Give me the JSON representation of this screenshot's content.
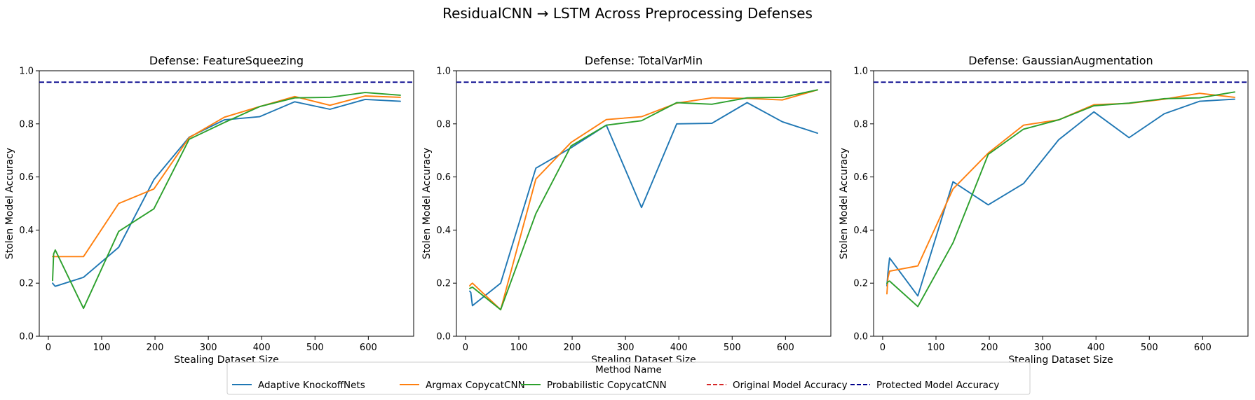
{
  "suptitle": "ResidualCNN → LSTM Across Preprocessing Defenses",
  "x": [
    8,
    10,
    13,
    66,
    132,
    198,
    264,
    330,
    396,
    462,
    528,
    594,
    660
  ],
  "chart_data": [
    {
      "type": "line",
      "title": "Defense: FeatureSqueezing",
      "xlabel": "Stealing Dataset Size",
      "ylabel": "Stolen Model Accuracy",
      "xlim": [
        -17,
        685
      ],
      "ylim": [
        0.0,
        1.0
      ],
      "xticks": [
        0,
        100,
        200,
        300,
        400,
        500,
        600
      ],
      "yticks": [
        0.0,
        0.2,
        0.4,
        0.6,
        0.8,
        1.0
      ],
      "reference_line": 0.957,
      "series": [
        {
          "name": "Adaptive KnockoffNets",
          "color": "#1f77b4",
          "values": [
            0.2,
            0.195,
            0.188,
            0.222,
            0.335,
            0.59,
            0.75,
            0.815,
            0.827,
            0.883,
            0.855,
            0.892,
            0.885
          ]
        },
        {
          "name": "Argmax CopycatCNN",
          "color": "#ff7f0e",
          "values": [
            0.3,
            0.3,
            0.3,
            0.3,
            0.5,
            0.555,
            0.748,
            0.825,
            0.865,
            0.903,
            0.87,
            0.905,
            0.9
          ]
        },
        {
          "name": "Probabilistic CopycatCNN",
          "color": "#2ca02c",
          "values": [
            0.21,
            0.31,
            0.325,
            0.105,
            0.395,
            0.48,
            0.742,
            0.805,
            0.865,
            0.898,
            0.9,
            0.918,
            0.908
          ]
        }
      ]
    },
    {
      "type": "line",
      "title": "Defense: TotalVarMin",
      "xlabel": "Stealing Dataset Size",
      "ylabel": "Stolen Model Accuracy",
      "xlim": [
        -17,
        685
      ],
      "ylim": [
        0.0,
        1.0
      ],
      "xticks": [
        0,
        100,
        200,
        300,
        400,
        500,
        600
      ],
      "yticks": [
        0.0,
        0.2,
        0.4,
        0.6,
        0.8,
        1.0
      ],
      "reference_line": 0.957,
      "series": [
        {
          "name": "Adaptive KnockoffNets",
          "color": "#1f77b4",
          "values": [
            0.17,
            0.165,
            0.115,
            0.2,
            0.633,
            0.71,
            0.795,
            0.485,
            0.8,
            0.802,
            0.88,
            0.808,
            0.765
          ]
        },
        {
          "name": "Argmax CopycatCNN",
          "color": "#ff7f0e",
          "values": [
            0.19,
            0.195,
            0.2,
            0.1,
            0.592,
            0.73,
            0.816,
            0.827,
            0.878,
            0.898,
            0.896,
            0.89,
            0.928
          ]
        },
        {
          "name": "Probabilistic CopycatCNN",
          "color": "#2ca02c",
          "values": [
            0.18,
            0.182,
            0.185,
            0.1,
            0.462,
            0.717,
            0.795,
            0.812,
            0.88,
            0.874,
            0.898,
            0.9,
            0.928
          ]
        }
      ]
    },
    {
      "type": "line",
      "title": "Defense: GaussianAugmentation",
      "xlabel": "Stealing Dataset Size",
      "ylabel": "Stolen Model Accuracy",
      "xlim": [
        -17,
        685
      ],
      "ylim": [
        0.0,
        1.0
      ],
      "xticks": [
        0,
        100,
        200,
        300,
        400,
        500,
        600
      ],
      "yticks": [
        0.0,
        0.2,
        0.4,
        0.6,
        0.8,
        1.0
      ],
      "reference_line": 0.957,
      "series": [
        {
          "name": "Adaptive KnockoffNets",
          "color": "#1f77b4",
          "values": [
            0.19,
            0.24,
            0.295,
            0.152,
            0.582,
            0.495,
            0.575,
            0.74,
            0.845,
            0.748,
            0.838,
            0.885,
            0.893
          ]
        },
        {
          "name": "Argmax CopycatCNN",
          "color": "#ff7f0e",
          "values": [
            0.16,
            0.22,
            0.245,
            0.265,
            0.555,
            0.69,
            0.795,
            0.815,
            0.872,
            0.877,
            0.893,
            0.915,
            0.9
          ]
        },
        {
          "name": "Probabilistic CopycatCNN",
          "color": "#2ca02c",
          "values": [
            0.2,
            0.205,
            0.208,
            0.112,
            0.352,
            0.685,
            0.78,
            0.815,
            0.868,
            0.878,
            0.895,
            0.898,
            0.92
          ]
        }
      ]
    }
  ],
  "legend": {
    "title": "Method Name",
    "placement": "bottom-center",
    "entries": [
      {
        "label": "Adaptive KnockoffNets",
        "color": "#1f77b4",
        "style": "solid"
      },
      {
        "label": "Argmax CopycatCNN",
        "color": "#ff7f0e",
        "style": "solid"
      },
      {
        "label": "Probabilistic CopycatCNN",
        "color": "#2ca02c",
        "style": "solid"
      },
      {
        "label": "Original Model Accuracy",
        "color": "#d62728",
        "style": "dashed"
      },
      {
        "label": "Protected Model Accuracy",
        "color": "#00008b",
        "style": "dashed"
      }
    ]
  }
}
